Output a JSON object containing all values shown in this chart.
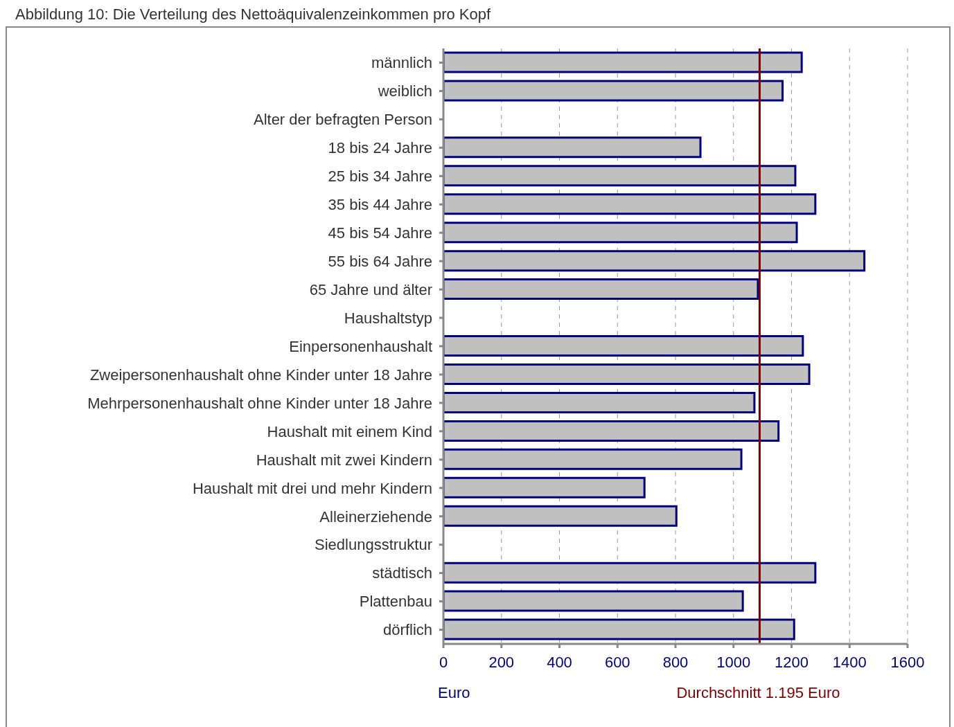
{
  "chart_data": {
    "type": "bar",
    "orientation": "horizontal",
    "title": "Abbildung 10: Die Verteilung des Nettoäquivalenzeinkommen pro Kopf",
    "xlabel": "Euro",
    "categories": [
      "männlich",
      "weiblich",
      "Alter der befragten Person",
      "18 bis 24 Jahre",
      "25 bis 34 Jahre",
      "35 bis 44 Jahre",
      "45 bis 54 Jahre",
      "55 bis 64 Jahre",
      "65 Jahre und älter",
      "Haushaltstyp",
      "Einpersonenhaushalt",
      "Zweipersonenhaushalt ohne Kinder unter 18 Jahre",
      "Mehrpersonenhaushalt ohne Kinder unter 18 Jahre",
      "Haushalt mit einem Kind",
      "Haushalt mit zwei Kindern",
      "Haushalt mit drei und mehr Kindern",
      "Alleinerziehende",
      "Siedlungsstruktur",
      "städtisch",
      "Plattenbau",
      "dörflich"
    ],
    "values": [
      1235,
      1169,
      null,
      886,
      1213,
      1282,
      1218,
      1451,
      1084,
      null,
      1239,
      1261,
      1072,
      1155,
      1027,
      693,
      803,
      null,
      1282,
      1032,
      1209
    ],
    "color": "#c0c0c0",
    "xlim": [
      0,
      1600
    ],
    "xticks": [
      0,
      200,
      400,
      600,
      800,
      1000,
      1200,
      1400,
      1600
    ],
    "grid": "x",
    "ref_lines": [
      {
        "axis": "x",
        "value": 1090,
        "label": "Durchschnitt 1.195 Euro",
        "color": "#800000"
      }
    ]
  }
}
